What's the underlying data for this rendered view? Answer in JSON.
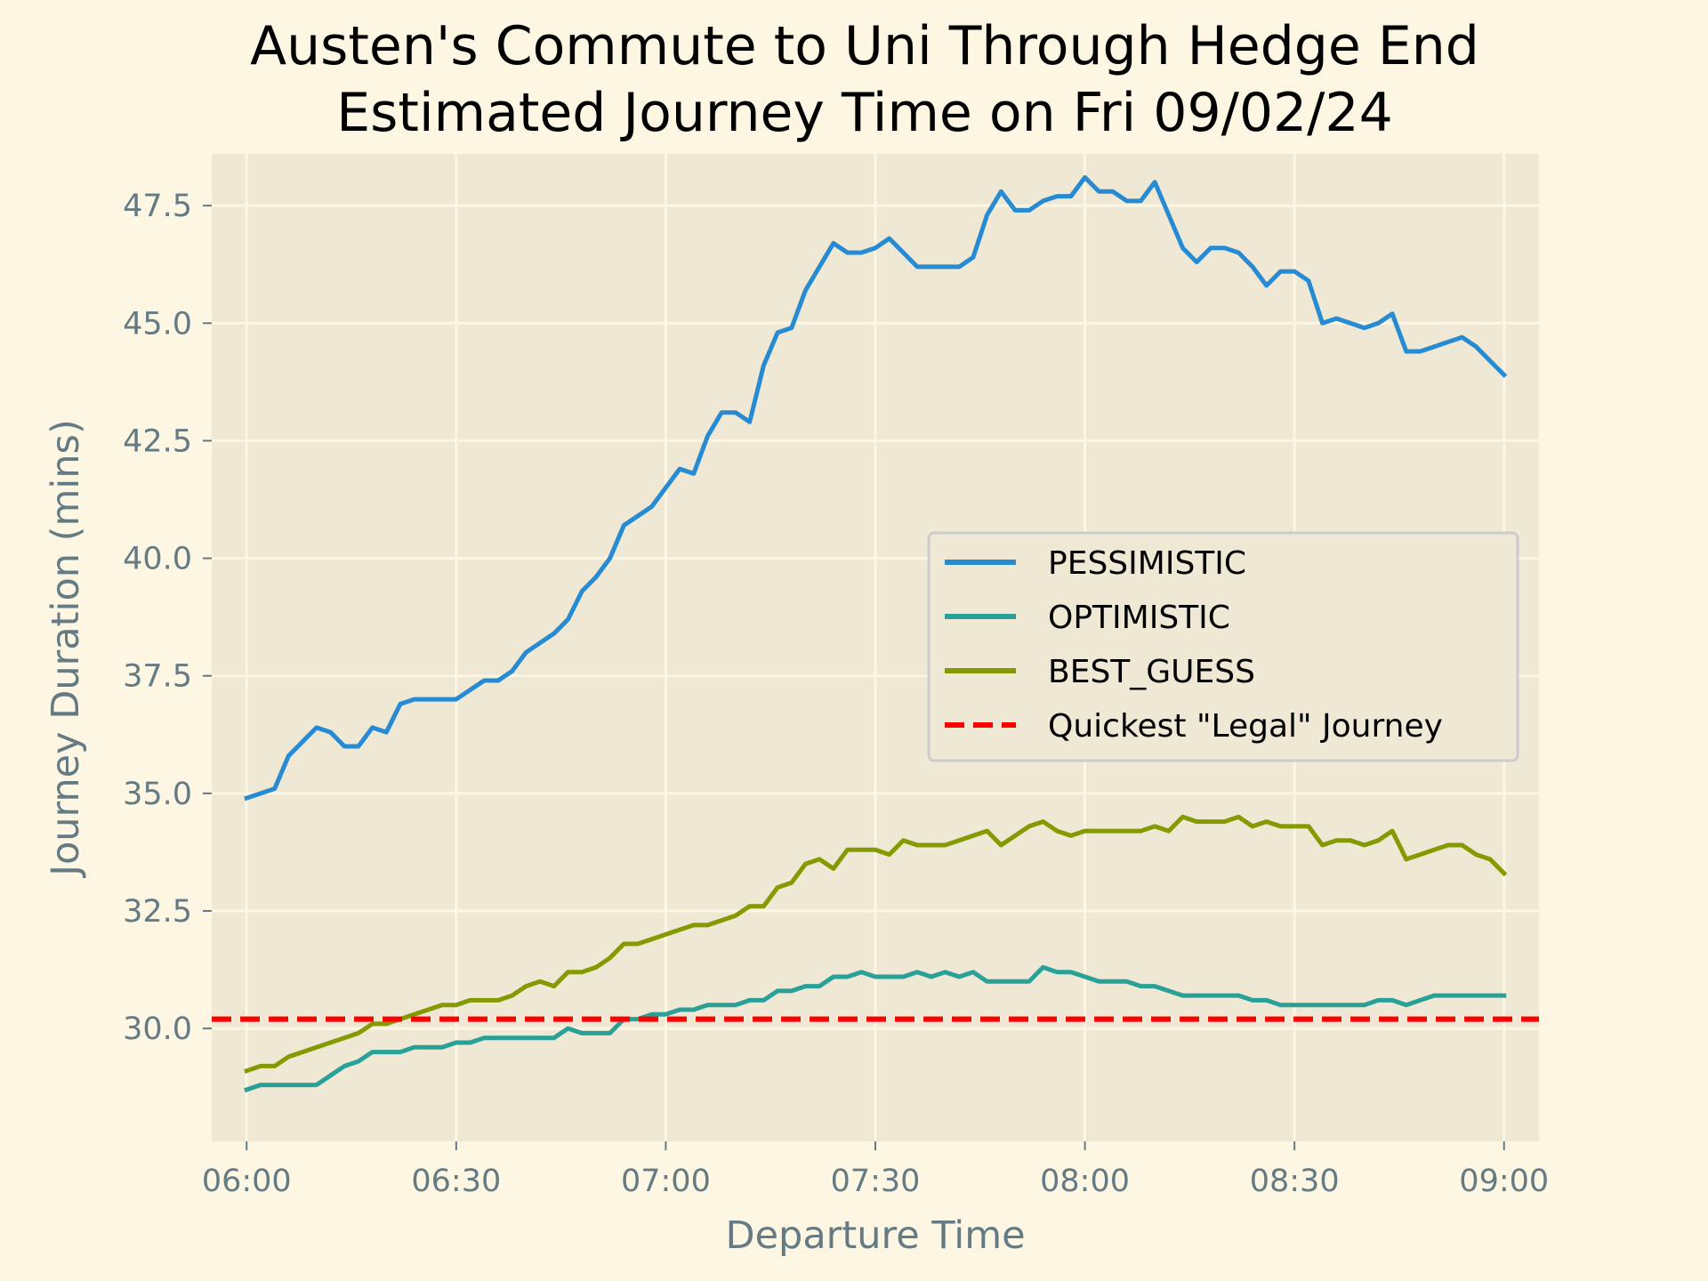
{
  "chart_data": {
    "type": "line",
    "title": "Austen's Commute to Uni Through Hedge End",
    "subtitle": "Estimated Journey Time on Fri 09/02/24",
    "xlabel": "Departure Time",
    "ylabel": "Journey Duration (mins)",
    "xlim": [
      "05:55",
      "09:05"
    ],
    "ylim": [
      27.6,
      48.6
    ],
    "x_ticks": [
      "06:00",
      "06:30",
      "07:00",
      "07:30",
      "08:00",
      "08:30",
      "09:00"
    ],
    "y_ticks": [
      "30.0",
      "32.5",
      "35.0",
      "37.5",
      "40.0",
      "42.5",
      "45.0",
      "47.5"
    ],
    "grid": true,
    "legend_position": "center-right",
    "background": "#eee8d5",
    "x": [
      "06:00",
      "06:02",
      "06:04",
      "06:06",
      "06:08",
      "06:10",
      "06:12",
      "06:14",
      "06:16",
      "06:18",
      "06:20",
      "06:22",
      "06:24",
      "06:26",
      "06:28",
      "06:30",
      "06:32",
      "06:34",
      "06:36",
      "06:38",
      "06:40",
      "06:42",
      "06:44",
      "06:46",
      "06:48",
      "06:50",
      "06:52",
      "06:54",
      "06:56",
      "06:58",
      "07:00",
      "07:02",
      "07:04",
      "07:06",
      "07:08",
      "07:10",
      "07:12",
      "07:14",
      "07:16",
      "07:18",
      "07:20",
      "07:22",
      "07:24",
      "07:26",
      "07:28",
      "07:30",
      "07:32",
      "07:34",
      "07:36",
      "07:38",
      "07:40",
      "07:42",
      "07:44",
      "07:46",
      "07:48",
      "07:50",
      "07:52",
      "07:54",
      "07:56",
      "07:58",
      "08:00",
      "08:02",
      "08:04",
      "08:06",
      "08:08",
      "08:10",
      "08:12",
      "08:14",
      "08:16",
      "08:18",
      "08:20",
      "08:22",
      "08:24",
      "08:26",
      "08:28",
      "08:30",
      "08:32",
      "08:34",
      "08:36",
      "08:38",
      "08:40",
      "08:42",
      "08:44",
      "08:46",
      "08:48",
      "08:50",
      "08:52",
      "08:54",
      "08:56",
      "08:58",
      "09:00"
    ],
    "series": [
      {
        "name": "PESSIMISTIC",
        "color": "#268bd2",
        "style": "solid",
        "values": [
          34.9,
          35.0,
          35.1,
          35.8,
          36.1,
          36.4,
          36.3,
          36.0,
          36.0,
          36.4,
          36.3,
          36.9,
          37.0,
          37.0,
          37.0,
          37.0,
          37.2,
          37.4,
          37.4,
          37.6,
          38.0,
          38.2,
          38.4,
          38.7,
          39.3,
          39.6,
          40.0,
          40.7,
          40.9,
          41.1,
          41.5,
          41.9,
          41.8,
          42.6,
          43.1,
          43.1,
          42.9,
          44.1,
          44.8,
          44.9,
          45.7,
          46.2,
          46.7,
          46.5,
          46.5,
          46.6,
          46.8,
          46.5,
          46.2,
          46.2,
          46.2,
          46.2,
          46.4,
          47.3,
          47.8,
          47.4,
          47.4,
          47.6,
          47.7,
          47.7,
          48.1,
          47.8,
          47.8,
          47.6,
          47.6,
          48.0,
          47.3,
          46.6,
          46.3,
          46.6,
          46.6,
          46.5,
          46.2,
          45.8,
          46.1,
          46.1,
          45.9,
          45.0,
          45.1,
          45.0,
          44.9,
          45.0,
          45.2,
          44.4,
          44.4,
          44.5,
          44.6,
          44.7,
          44.5,
          44.2,
          43.9
        ]
      },
      {
        "name": "OPTIMISTIC",
        "color": "#2aa198",
        "style": "solid",
        "values": [
          28.7,
          28.8,
          28.8,
          28.8,
          28.8,
          28.8,
          29.0,
          29.2,
          29.3,
          29.5,
          29.5,
          29.5,
          29.6,
          29.6,
          29.6,
          29.7,
          29.7,
          29.8,
          29.8,
          29.8,
          29.8,
          29.8,
          29.8,
          30.0,
          29.9,
          29.9,
          29.9,
          30.2,
          30.2,
          30.3,
          30.3,
          30.4,
          30.4,
          30.5,
          30.5,
          30.5,
          30.6,
          30.6,
          30.8,
          30.8,
          30.9,
          30.9,
          31.1,
          31.1,
          31.2,
          31.1,
          31.1,
          31.1,
          31.2,
          31.1,
          31.2,
          31.1,
          31.2,
          31.0,
          31.0,
          31.0,
          31.0,
          31.3,
          31.2,
          31.2,
          31.1,
          31.0,
          31.0,
          31.0,
          30.9,
          30.9,
          30.8,
          30.7,
          30.7,
          30.7,
          30.7,
          30.7,
          30.6,
          30.6,
          30.5,
          30.5,
          30.5,
          30.5,
          30.5,
          30.5,
          30.5,
          30.6,
          30.6,
          30.5,
          30.6,
          30.7,
          30.7,
          30.7,
          30.7,
          30.7,
          30.7
        ]
      },
      {
        "name": "BEST_GUESS",
        "color": "#859900",
        "style": "solid",
        "values": [
          29.1,
          29.2,
          29.2,
          29.4,
          29.5,
          29.6,
          29.7,
          29.8,
          29.9,
          30.1,
          30.1,
          30.2,
          30.3,
          30.4,
          30.5,
          30.5,
          30.6,
          30.6,
          30.6,
          30.7,
          30.9,
          31.0,
          30.9,
          31.2,
          31.2,
          31.3,
          31.5,
          31.8,
          31.8,
          31.9,
          32.0,
          32.1,
          32.2,
          32.2,
          32.3,
          32.4,
          32.6,
          32.6,
          33.0,
          33.1,
          33.5,
          33.6,
          33.4,
          33.8,
          33.8,
          33.8,
          33.7,
          34.0,
          33.9,
          33.9,
          33.9,
          34.0,
          34.1,
          34.2,
          33.9,
          34.1,
          34.3,
          34.4,
          34.2,
          34.1,
          34.2,
          34.2,
          34.2,
          34.2,
          34.2,
          34.3,
          34.2,
          34.5,
          34.4,
          34.4,
          34.4,
          34.5,
          34.3,
          34.4,
          34.3,
          34.3,
          34.3,
          33.9,
          34.0,
          34.0,
          33.9,
          34.0,
          34.2,
          33.6,
          33.7,
          33.8,
          33.9,
          33.9,
          33.7,
          33.6,
          33.3
        ]
      },
      {
        "name": "Quickest \"Legal\" Journey",
        "color": "#ff0000",
        "style": "dashed",
        "constant": 30.2
      }
    ]
  }
}
